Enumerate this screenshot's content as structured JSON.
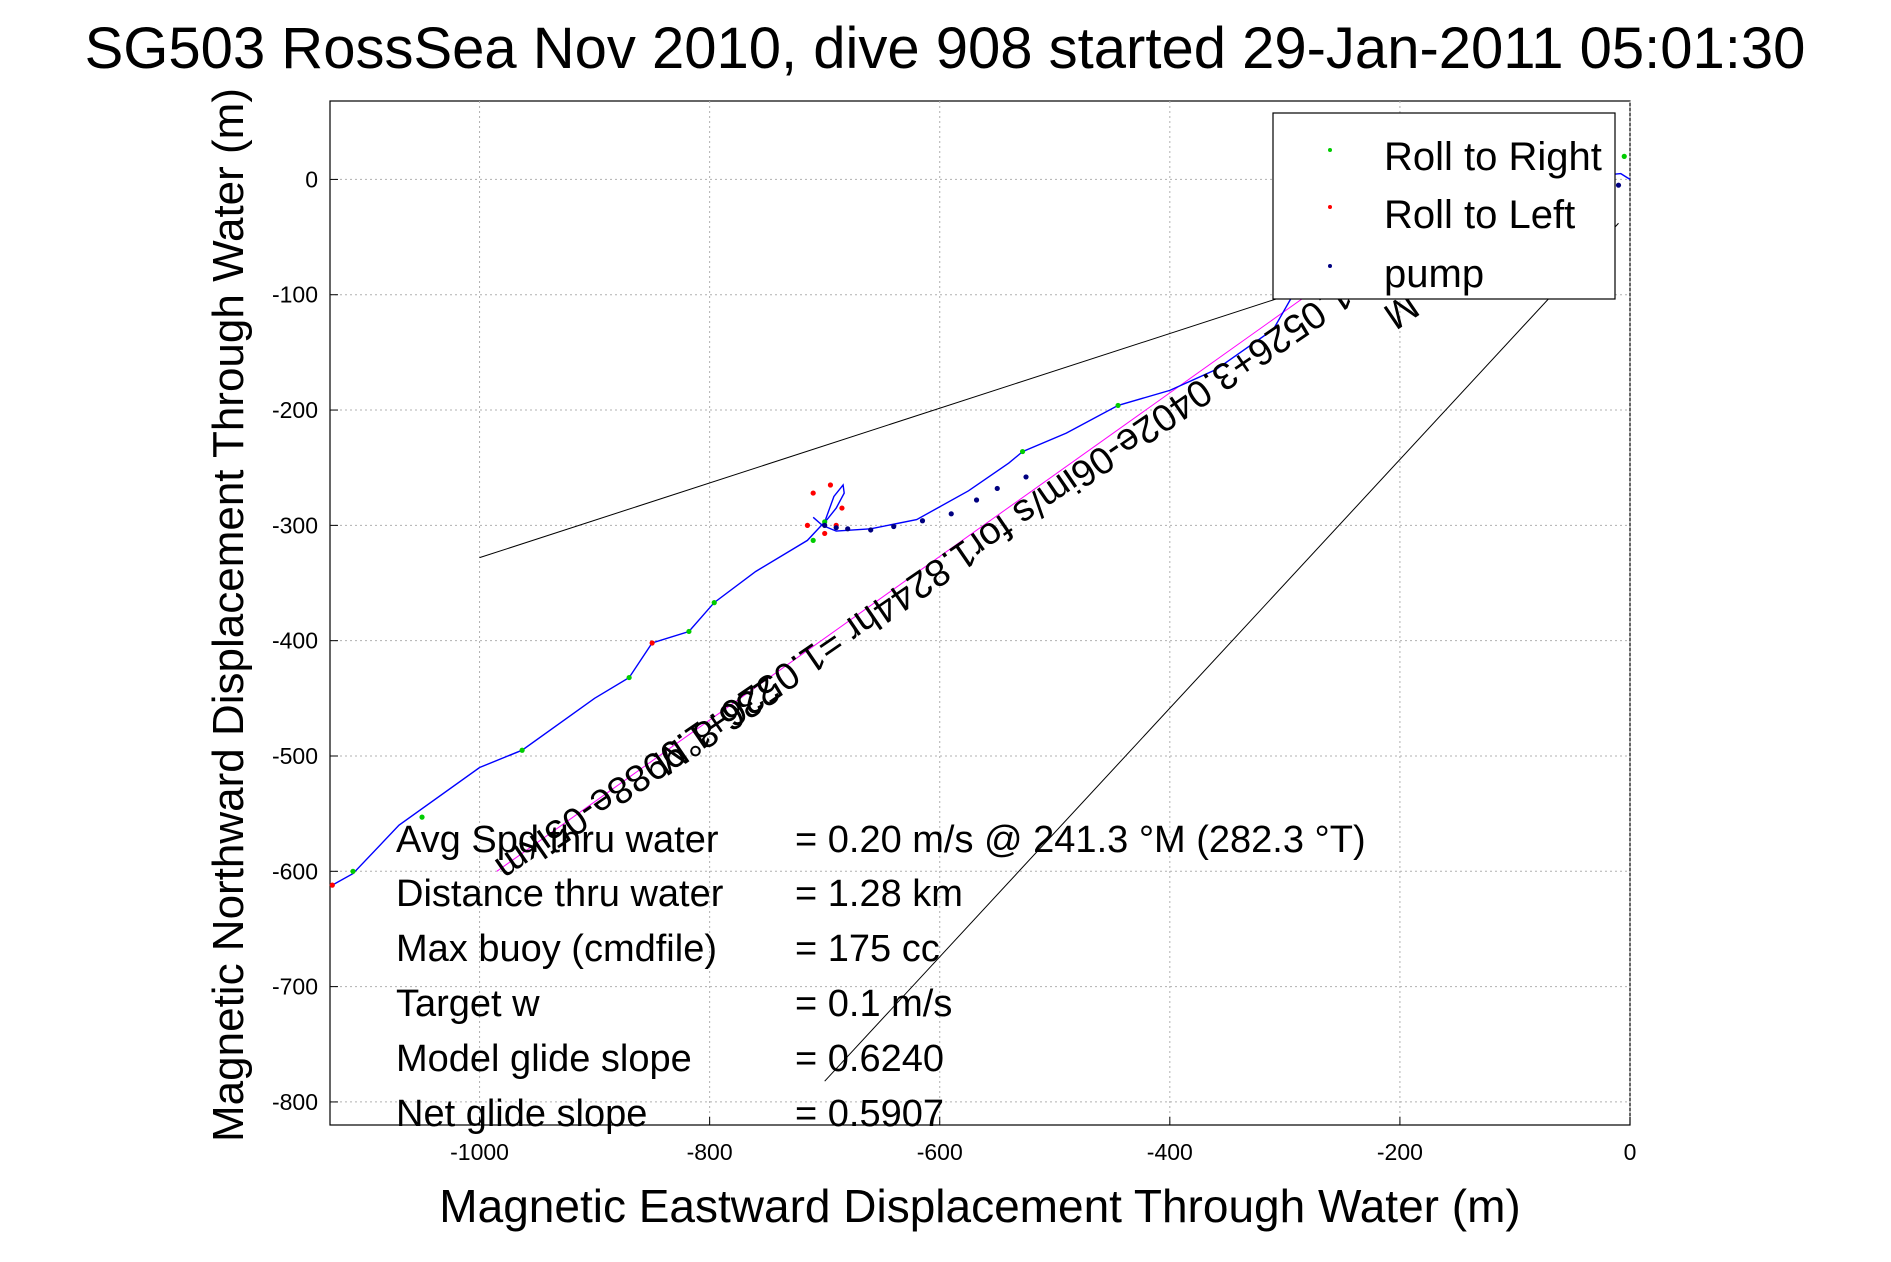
{
  "chart_data": {
    "type": "line",
    "title": "SG503 RossSea Nov 2010, dive 908 started 29-Jan-2011 05:01:30",
    "xlabel": "Magnetic Eastward Displacement Through Water (m)",
    "ylabel": "Magnetic Northward Displacement Through Water (m)",
    "xlim": [
      -1130,
      0
    ],
    "ylim": [
      -820,
      68
    ],
    "x_ticks": [
      -1000,
      -800,
      -600,
      -400,
      -200,
      0
    ],
    "y_ticks": [
      0,
      -100,
      -200,
      -300,
      -400,
      -500,
      -600,
      -700,
      -800
    ],
    "x_tick_labels": [
      "-1000",
      "-800",
      "-600",
      "-400",
      "-200",
      "0"
    ],
    "y_tick_labels": [
      "0",
      "-100",
      "-200",
      "-300",
      "-400",
      "-500",
      "-600",
      "-700",
      "-800"
    ],
    "grid": true,
    "legend_position": "top-right",
    "colors": {
      "track": "#0000ff",
      "roll_right": "#00cc00",
      "roll_left": "#ff0000",
      "pump": "#000080",
      "guide": "#000000",
      "current": "#ff00ff"
    },
    "series": [
      {
        "name": "Roll to Right",
        "x": [
          -1110,
          -1050,
          -963,
          -870,
          -818,
          -796,
          -710,
          -700,
          -528,
          -445,
          -5
        ],
        "y": [
          -600,
          -553,
          -495,
          -432,
          -392,
          -367,
          -313,
          -297,
          -236,
          -196,
          20
        ]
      },
      {
        "name": "Roll to Left",
        "x": [
          -1128,
          -850,
          -715,
          -700,
          -690,
          -685,
          -695,
          -710
        ],
        "y": [
          -612,
          -402,
          -300,
          -307,
          -300,
          -285,
          -265,
          -272
        ]
      },
      {
        "name": "pump",
        "x": [
          -700,
          -690,
          -680,
          -660,
          -640,
          -615,
          -590,
          -568,
          -550,
          -525,
          -300,
          -10
        ],
        "y": [
          -300,
          -302,
          -303,
          -304,
          -301,
          -296,
          -290,
          -278,
          -268,
          -258,
          -80,
          -5
        ]
      },
      {
        "name": "",
        "type": "track",
        "x": [
          -1128,
          -1110,
          -1070,
          -1000,
          -963,
          -900,
          -870,
          -850,
          -818,
          -796,
          -760,
          -715,
          -700,
          -692,
          -684,
          -683,
          -690,
          -702,
          -710,
          -702,
          -690,
          -660,
          -620,
          -575,
          -540,
          -528,
          -490,
          -445,
          -400,
          -360,
          -310,
          -290,
          -250,
          -180,
          -100,
          -40,
          -8,
          0
        ],
        "y": [
          -612,
          -602,
          -560,
          -510,
          -495,
          -450,
          -432,
          -402,
          -392,
          -367,
          -340,
          -313,
          -297,
          -275,
          -265,
          -272,
          -285,
          -300,
          -293,
          -300,
          -305,
          -303,
          -295,
          -270,
          -246,
          -236,
          -220,
          -196,
          -183,
          -165,
          -130,
          -95,
          -60,
          -15,
          5,
          2,
          5,
          0
        ]
      }
    ],
    "annotations": {
      "heading_label": "236.8°M",
      "current_label": "1.0526+3.0402e-06im/s for1.8244hr =1.0526+1.9988e-05ikm",
      "current_label_tail": "M"
    },
    "stats": [
      {
        "label": "Avg Spd thru water",
        "value": "=  0.20 m/s @ 241.3 °M (282.3 °T)"
      },
      {
        "label": "Distance thru water",
        "value": "=  1.28 km"
      },
      {
        "label": "Max buoy (cmdfile)",
        "value": "= 175 cc"
      },
      {
        "label": "Target w",
        "value": "= 0.1 m/s"
      },
      {
        "label": "Model glide slope",
        "value": "= 0.6240"
      },
      {
        "label": "Net glide slope",
        "value": "= 0.5907"
      }
    ]
  }
}
